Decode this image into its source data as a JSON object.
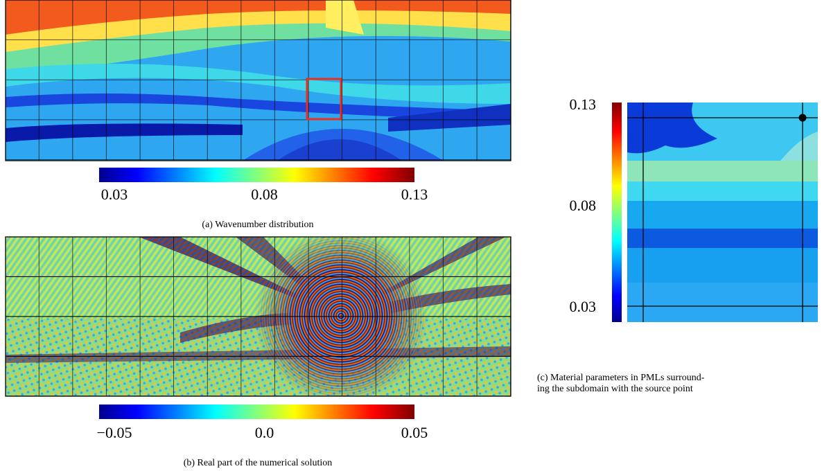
{
  "figures": [
    {
      "caption": [
        "(a) Wavenumber distribution"
      ],
      "colorbar": {
        "lim": [
          0.03,
          0.13
        ],
        "ticks": [
          0.03,
          0.08,
          0.13
        ]
      }
    },
    {
      "caption": [
        "(b) Real part of the numerical solution"
      ],
      "colorbar": {
        "lim": [
          -0.05,
          0.05
        ],
        "ticks": [
          {
            "value": -0.05,
            "label": "−0.05"
          },
          {
            "value": 0,
            "label": "0.0"
          },
          0.05
        ]
      }
    },
    {
      "caption": [
        "(c) Material parameters in PMLs surround-",
        "ing the subdomain with the source point"
      ],
      "colorbar": {
        "lim": [
          0.03,
          0.13
        ],
        "ticks": [
          0.03,
          0.08,
          0.13
        ]
      }
    }
  ]
}
